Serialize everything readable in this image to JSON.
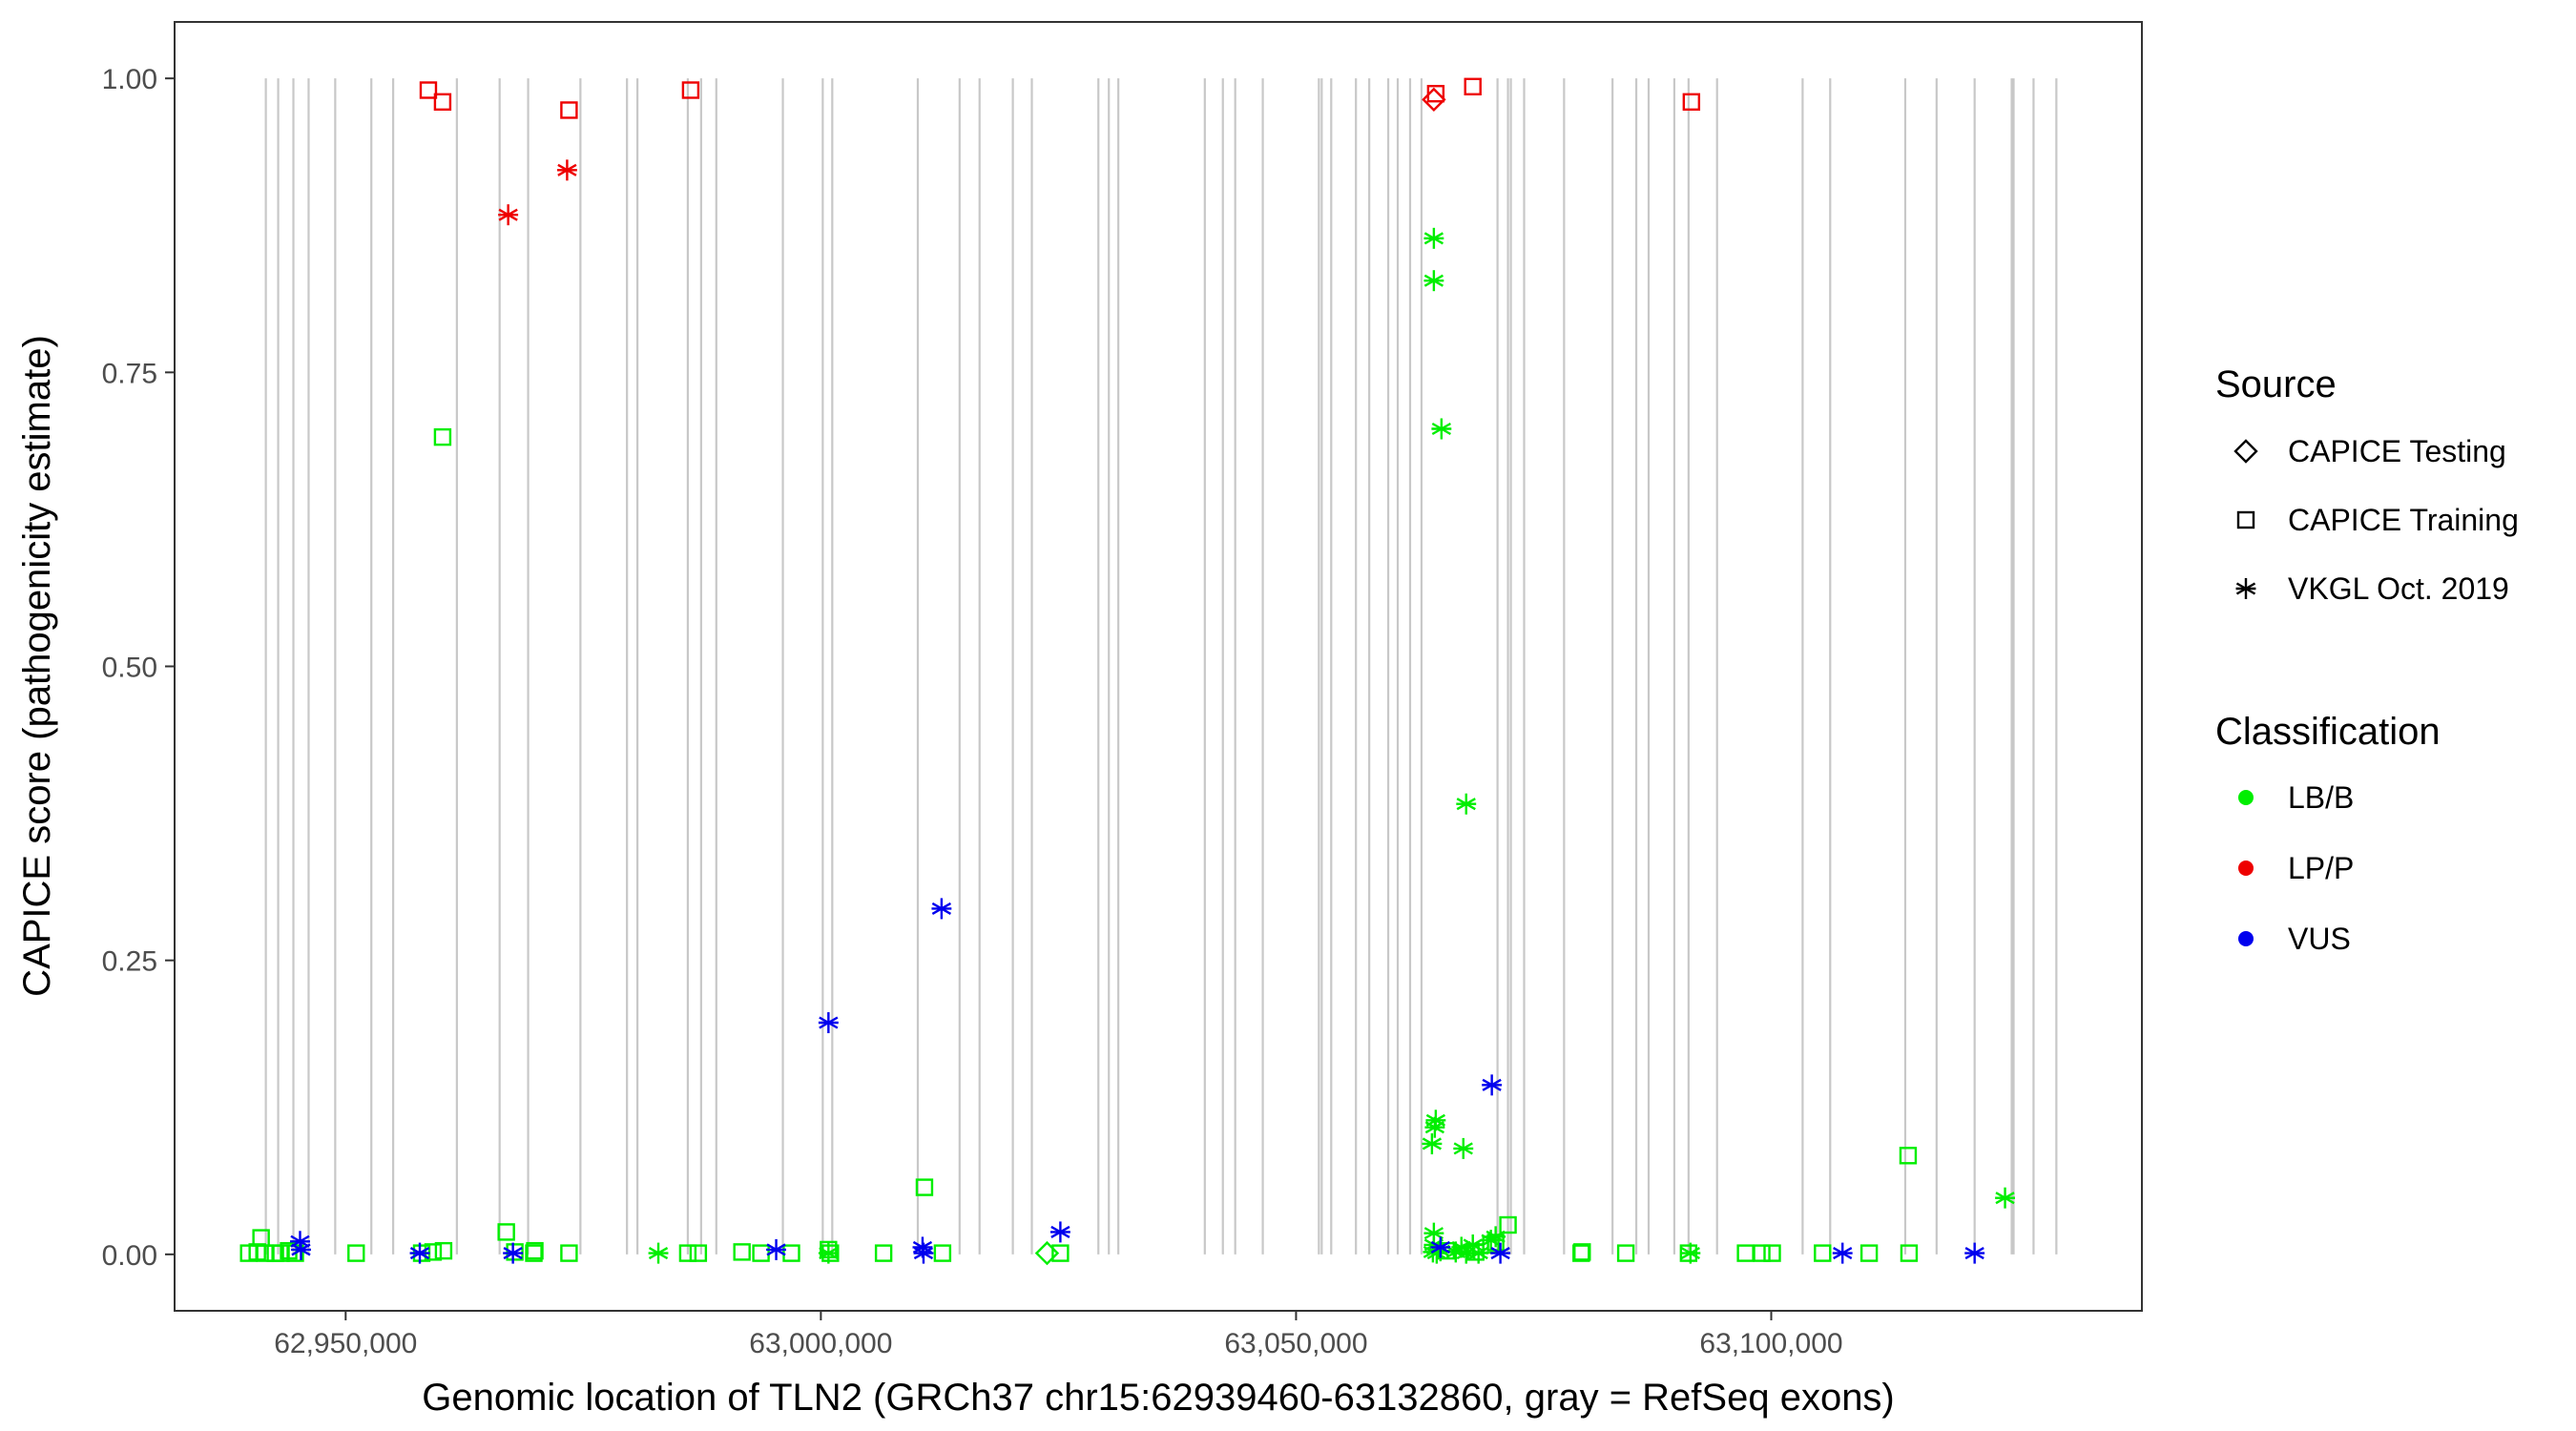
{
  "chart_data": {
    "type": "scatter",
    "xlabel": "Genomic location of TLN2 (GRCh37 chr15:62939460-63132860, gray = RefSeq exons)",
    "ylabel": "CAPICE score (pathogenicity estimate)",
    "xlim": [
      62932000,
      63139000
    ],
    "ylim": [
      -0.048,
      1.048
    ],
    "x_ticks": [
      62950000,
      63000000,
      63050000,
      63100000
    ],
    "x_tick_labels": [
      "62,950,000",
      "63,000,000",
      "63,050,000",
      "63,100,000"
    ],
    "y_ticks": [
      0,
      0.25,
      0.5,
      0.75,
      1.0
    ],
    "y_tick_labels": [
      "0.00",
      "0.25",
      "0.50",
      "0.75",
      "1.00"
    ],
    "exons": [
      62941600,
      62942900,
      62944500,
      62946100,
      62948900,
      62952700,
      62955000,
      62961700,
      62966200,
      62969200,
      62974700,
      62979600,
      62980700,
      62986000,
      62987400,
      62989000,
      62996000,
      63000200,
      63001200,
      63010200,
      63014600,
      63016700,
      63020200,
      63022200,
      63029200,
      63030300,
      63031300,
      63040400,
      63042300,
      63043600,
      63046500,
      63052400,
      63052700,
      63053700,
      63056300,
      63057700,
      63059700,
      63060700,
      63062000,
      63063200,
      63071200,
      63072300,
      63072600,
      63074000,
      63078200,
      63083300,
      63085800,
      63087100,
      63089800,
      63091300,
      63094300,
      63103300,
      63106200,
      63114100,
      63117400,
      63121400,
      63125300,
      63125500,
      63127600,
      63130000
    ],
    "legends": [
      {
        "title": "Source",
        "entries": [
          {
            "label": "CAPICE Testing",
            "shape": "diamond"
          },
          {
            "label": "CAPICE Training",
            "shape": "square"
          },
          {
            "label": "VKGL Oct. 2019",
            "shape": "asterisk"
          }
        ]
      },
      {
        "title": "Classification",
        "entries": [
          {
            "label": "LB/B",
            "color": "#00ee00"
          },
          {
            "label": "LP/P",
            "color": "#ee0000"
          },
          {
            "label": "VUS",
            "color": "#0000ee"
          }
        ]
      }
    ],
    "colors": {
      "LB/B": "#00ee00",
      "LP/P": "#ee0000",
      "VUS": "#0000ee"
    },
    "series": [
      {
        "source": "CAPICE Training",
        "classification": "LP/P",
        "points": [
          [
            62958700,
            0.99
          ],
          [
            62960200,
            0.98
          ],
          [
            62973500,
            0.973
          ],
          [
            62986300,
            0.99
          ],
          [
            63064700,
            0.987
          ],
          [
            63068600,
            0.993
          ],
          [
            63091600,
            0.98
          ]
        ]
      },
      {
        "source": "CAPICE Testing",
        "classification": "LP/P",
        "points": [
          [
            63064500,
            0.982
          ]
        ]
      },
      {
        "source": "VKGL Oct. 2019",
        "classification": "LP/P",
        "points": [
          [
            62967100,
            0.884
          ],
          [
            62973300,
            0.922
          ]
        ]
      },
      {
        "source": "CAPICE Training",
        "classification": "LB/B",
        "points": [
          [
            62960200,
            0.695
          ],
          [
            62939800,
            0.001
          ],
          [
            62940700,
            0.002
          ],
          [
            62941100,
            0.014
          ],
          [
            62941500,
            0.001
          ],
          [
            62942600,
            0.001
          ],
          [
            62943200,
            0.001
          ],
          [
            62944000,
            0.003
          ],
          [
            62944700,
            0.001
          ],
          [
            62951100,
            0.001
          ],
          [
            62958000,
            0.001
          ],
          [
            62959200,
            0.002
          ],
          [
            62960300,
            0.003
          ],
          [
            62966900,
            0.019
          ],
          [
            62967800,
            0.002
          ],
          [
            62969800,
            0.001
          ],
          [
            62969900,
            0.003
          ],
          [
            62973500,
            0.001
          ],
          [
            62986000,
            0.001
          ],
          [
            62987100,
            0.001
          ],
          [
            62991700,
            0.002
          ],
          [
            62993700,
            0.001
          ],
          [
            62996900,
            0.001
          ],
          [
            63000800,
            0.004
          ],
          [
            63001000,
            0.001
          ],
          [
            63006600,
            0.001
          ],
          [
            63010900,
            0.057
          ],
          [
            63012800,
            0.001
          ],
          [
            63025200,
            0.001
          ],
          [
            63065800,
            0.003
          ],
          [
            63068900,
            0.002
          ],
          [
            63070500,
            0.008
          ],
          [
            63071000,
            0.01
          ],
          [
            63072300,
            0.025
          ],
          [
            63080000,
            0.001
          ],
          [
            63080100,
            0.002
          ],
          [
            63084700,
            0.001
          ],
          [
            63091300,
            0.001
          ],
          [
            63097300,
            0.001
          ],
          [
            63099000,
            0.001
          ],
          [
            63100100,
            0.001
          ],
          [
            63105400,
            0.001
          ],
          [
            63110300,
            0.001
          ],
          [
            63114400,
            0.084
          ],
          [
            63114500,
            0.001
          ]
        ]
      },
      {
        "source": "CAPICE Testing",
        "classification": "LB/B",
        "points": [
          [
            63023800,
            0.001
          ]
        ]
      },
      {
        "source": "VKGL Oct. 2019",
        "classification": "LB/B",
        "points": [
          [
            63064500,
            0.864
          ],
          [
            63064500,
            0.828
          ],
          [
            63065300,
            0.702
          ],
          [
            63067900,
            0.383
          ],
          [
            63064700,
            0.114
          ],
          [
            63064600,
            0.108
          ],
          [
            63064300,
            0.094
          ],
          [
            63067600,
            0.09
          ],
          [
            63124600,
            0.048
          ],
          [
            62982900,
            0.001
          ],
          [
            63000800,
            0.001
          ],
          [
            63064500,
            0.018
          ],
          [
            63064500,
            0.008
          ],
          [
            63064400,
            0.002
          ],
          [
            63064800,
            0.001
          ],
          [
            63065200,
            0.003
          ],
          [
            63066800,
            0.002
          ],
          [
            63067400,
            0.006
          ],
          [
            63067900,
            0.001
          ],
          [
            63068600,
            0.008
          ],
          [
            63069200,
            0.001
          ],
          [
            63070500,
            0.012
          ],
          [
            63071000,
            0.015
          ],
          [
            63091500,
            0.001
          ]
        ]
      },
      {
        "source": "VKGL Oct. 2019",
        "classification": "VUS",
        "points": [
          [
            63012700,
            0.294
          ],
          [
            63000800,
            0.197
          ],
          [
            63070600,
            0.144
          ],
          [
            63025200,
            0.019
          ],
          [
            62945200,
            0.011
          ],
          [
            62945300,
            0.004
          ],
          [
            62957800,
            0.001
          ],
          [
            62967600,
            0.001
          ],
          [
            62995300,
            0.004
          ],
          [
            63010700,
            0.006
          ],
          [
            63010800,
            0.001
          ],
          [
            63065200,
            0.006
          ],
          [
            63071500,
            0.001
          ],
          [
            63107500,
            0.001
          ],
          [
            63121400,
            0.001
          ]
        ]
      }
    ]
  }
}
